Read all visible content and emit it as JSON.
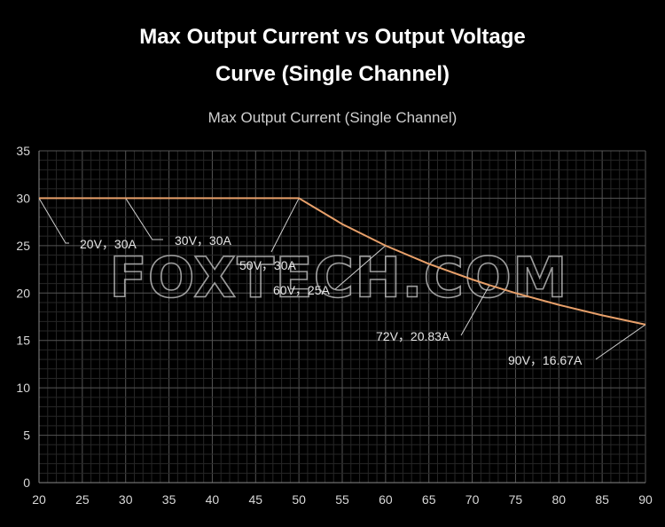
{
  "chart_data": {
    "type": "line",
    "title": "Max Output Current vs Output Voltage Curve (Single Channel)",
    "title_lines": [
      "Max Output Current vs Output Voltage",
      "Curve (Single Channel)"
    ],
    "subtitle": "Max Output Current (Single Channel)",
    "xlabel": "",
    "ylabel": "",
    "xlim": [
      20,
      90
    ],
    "ylim": [
      0,
      35
    ],
    "x_ticks": [
      20,
      25,
      30,
      35,
      40,
      45,
      50,
      55,
      60,
      65,
      70,
      75,
      80,
      85,
      90
    ],
    "y_ticks": [
      0,
      5,
      10,
      15,
      20,
      25,
      30,
      35
    ],
    "grid": true,
    "line_color": "#e8a06a",
    "series": [
      {
        "x": [
          20,
          30,
          50,
          55,
          60,
          65,
          70,
          72,
          75,
          80,
          85,
          90
        ],
        "y": [
          30,
          30,
          30,
          27.27,
          25,
          23.08,
          21.43,
          20.83,
          20,
          18.75,
          17.65,
          16.67
        ]
      }
    ],
    "annotations": [
      {
        "x": 20,
        "y": 30,
        "text": "20V，30A"
      },
      {
        "x": 30,
        "y": 30,
        "text": "30V，30A"
      },
      {
        "x": 50,
        "y": 30,
        "text": "50V，30A"
      },
      {
        "x": 60,
        "y": 25,
        "text": "60V，25A"
      },
      {
        "x": 72,
        "y": 20.83,
        "text": "72V，20.83A"
      },
      {
        "x": 90,
        "y": 16.67,
        "text": "90V，16.67A"
      }
    ]
  },
  "watermark": "FOXTECH.COM"
}
